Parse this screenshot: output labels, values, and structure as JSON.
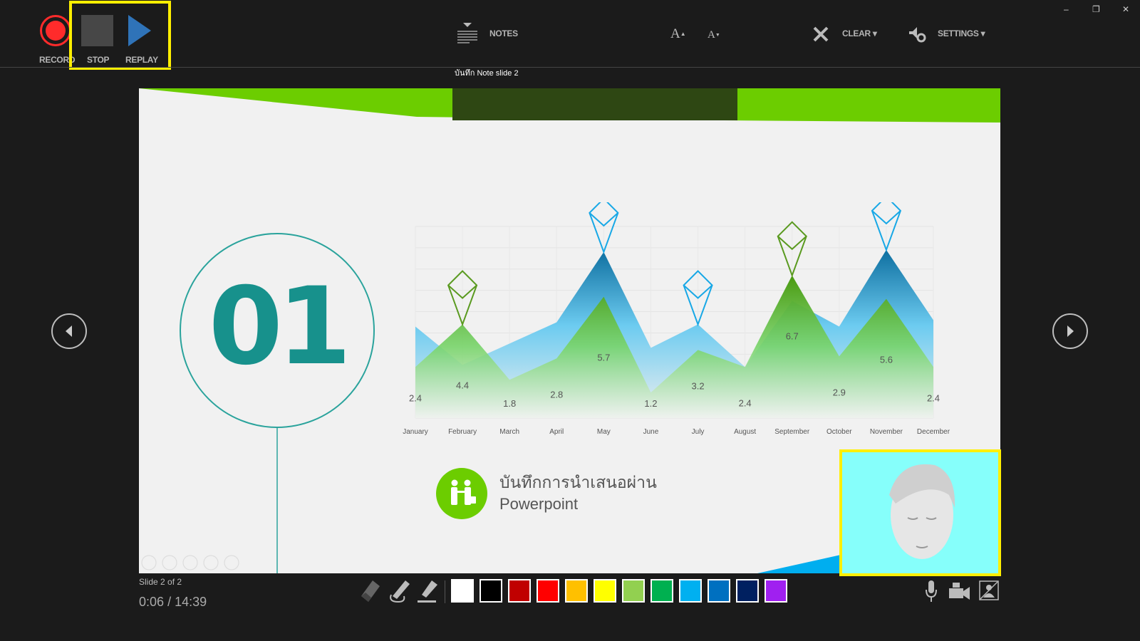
{
  "toolbar": {
    "record_label": "RECORD",
    "stop_label": "STOP",
    "replay_label": "REPLAY",
    "notes_label": "NOTES",
    "increase_font_label": "A",
    "decrease_font_label": "A",
    "clear_label": "CLEAR ▾",
    "settings_label": "SETTINGS ▾",
    "note_caption": "บันทึก Note slide 2"
  },
  "window_controls": {
    "minimize": "–",
    "restore": "❐",
    "close": "✕"
  },
  "slide": {
    "number_big": "01",
    "caption_line1": "บันทึกการนำเสนอผ่าน",
    "caption_line2": "Powerpoint",
    "accent_green": "#6ccd00",
    "accent_teal": "#17918c",
    "accent_blue": "#00aeef"
  },
  "chart_data": {
    "type": "area",
    "categories": [
      "January",
      "February",
      "March",
      "April",
      "May",
      "June",
      "July",
      "August",
      "September",
      "October",
      "November",
      "December"
    ],
    "ylim": [
      0,
      9
    ],
    "grid": true,
    "series": [
      {
        "values": [
          4.3,
          2.5,
          3.5,
          4.5,
          7.8,
          3.3,
          4.4,
          2.4,
          5.5,
          4.3,
          7.9,
          4.6
        ],
        "color": "#29a8e0"
      },
      {
        "values": [
          2.4,
          4.4,
          1.8,
          2.8,
          5.7,
          1.2,
          3.2,
          2.4,
          6.7,
          2.9,
          5.6,
          2.4
        ],
        "color": "#4fb82a",
        "data_labels": [
          "2.4",
          "4.4",
          "1.8",
          "2.8",
          "5.7",
          "1.2",
          "3.2",
          "2.4",
          "6.7",
          "2.9",
          "5.6",
          "2.4"
        ]
      }
    ]
  },
  "status": {
    "slide_counter": "Slide 2 of 2",
    "elapsed": "0:06",
    "divider": "/",
    "total": "14:39"
  },
  "pen_colors": [
    "#ffffff",
    "#000000",
    "#c00000",
    "#ff0000",
    "#ffc000",
    "#ffff00",
    "#92d050",
    "#00b050",
    "#00b0f0",
    "#0070c0",
    "#002060",
    "#a020f0"
  ],
  "webcam_bg": "#86fffb"
}
